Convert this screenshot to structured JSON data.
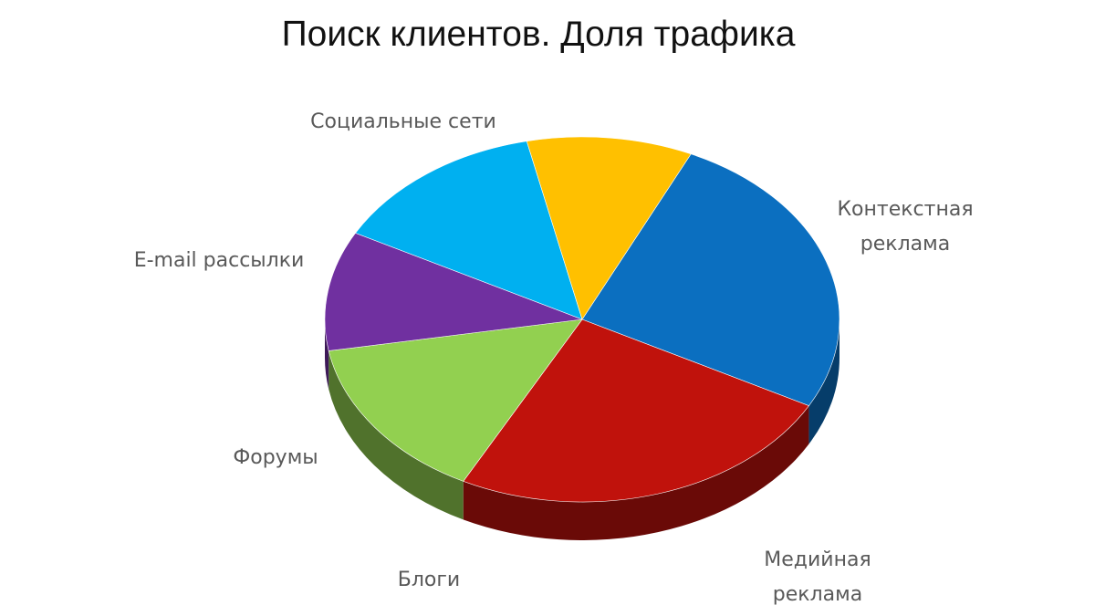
{
  "chart_data": {
    "type": "pie",
    "title": "Поиск клиентов. Доля трафика",
    "slices": [
      {
        "label": [
          "Контекстная",
          "реклама"
        ],
        "value": 25.9,
        "color": "#0b6fc0"
      },
      {
        "label": [
          "Медийная",
          "реклама"
        ],
        "value": 24.8,
        "color": "#c0120c"
      },
      {
        "label": [
          "Блоги"
        ],
        "value": 14.6,
        "color": "#92d050"
      },
      {
        "label": [
          "Форумы"
        ],
        "value": 10.6,
        "color": "#7030a0"
      },
      {
        "label": [
          "E-mail рассылки"
        ],
        "value": 13.7,
        "color": "#00b0f0"
      },
      {
        "label": [
          "Социальные сети"
        ],
        "value": 10.4,
        "color": "#ffc000"
      }
    ]
  }
}
